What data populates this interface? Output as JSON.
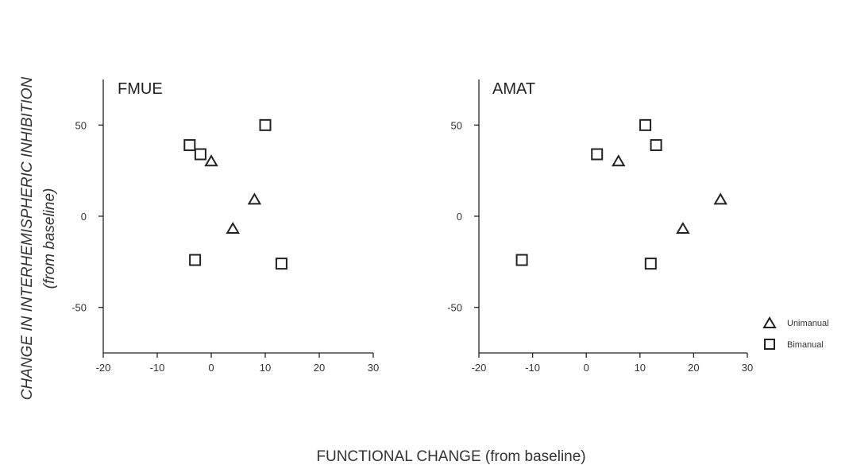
{
  "y_axis_title": {
    "line1": "CHANGE IN INTERHEMISPHERIC INHIBITION",
    "line2": "(from baseline)"
  },
  "x_axis_title": "FUNCTIONAL CHANGE (from baseline)",
  "legend": {
    "unimanual": "Unimanual",
    "bimanual": "Bimanual"
  },
  "chart_data": [
    {
      "type": "scatter",
      "title": "FMUE",
      "xlabel": "FUNCTIONAL CHANGE (from baseline)",
      "ylabel": "CHANGE IN INTERHEMISPHERIC INHIBITION (from baseline)",
      "xlim": [
        -20,
        30
      ],
      "ylim": [
        -75,
        75
      ],
      "xticks": [
        -20,
        -10,
        0,
        10,
        20,
        30
      ],
      "yticks": [
        -50,
        0,
        50
      ],
      "series": [
        {
          "name": "Unimanual",
          "marker": "triangle",
          "points": [
            {
              "x": 0,
              "y": 30
            },
            {
              "x": 8,
              "y": 9
            },
            {
              "x": 4,
              "y": -7
            }
          ]
        },
        {
          "name": "Bimanual",
          "marker": "square",
          "points": [
            {
              "x": -4,
              "y": 39
            },
            {
              "x": -2,
              "y": 34
            },
            {
              "x": 10,
              "y": 50
            },
            {
              "x": -3,
              "y": -24
            },
            {
              "x": 13,
              "y": -26
            }
          ]
        }
      ]
    },
    {
      "type": "scatter",
      "title": "AMAT",
      "xlabel": "FUNCTIONAL CHANGE (from baseline)",
      "ylabel": "CHANGE IN INTERHEMISPHERIC INHIBITION (from baseline)",
      "xlim": [
        -20,
        30
      ],
      "ylim": [
        -75,
        75
      ],
      "xticks": [
        -20,
        -10,
        0,
        10,
        20,
        30
      ],
      "yticks": [
        -50,
        0,
        50
      ],
      "series": [
        {
          "name": "Unimanual",
          "marker": "triangle",
          "points": [
            {
              "x": 6,
              "y": 30
            },
            {
              "x": 25,
              "y": 9
            },
            {
              "x": 18,
              "y": -7
            }
          ]
        },
        {
          "name": "Bimanual",
          "marker": "square",
          "points": [
            {
              "x": 2,
              "y": 34
            },
            {
              "x": 11,
              "y": 50
            },
            {
              "x": 13,
              "y": 39
            },
            {
              "x": -12,
              "y": -24
            },
            {
              "x": 12,
              "y": -26
            }
          ]
        }
      ]
    }
  ]
}
